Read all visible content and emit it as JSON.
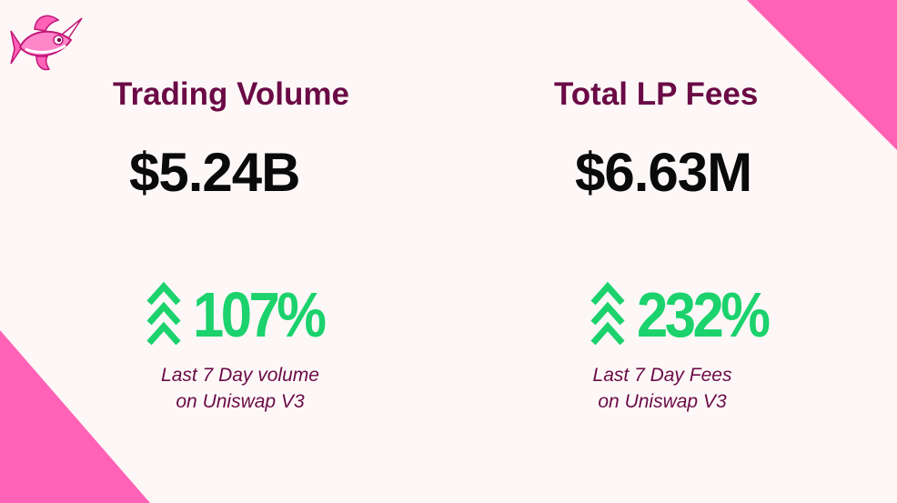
{
  "colors": {
    "background": "#fdf8f7",
    "accent_pink": "#ff62b6",
    "heading": "#6b0a46",
    "value": "#0a0a0a",
    "growth_green": "#1bd26d"
  },
  "logo": {
    "icon": "unicorn-fish-icon"
  },
  "stats": [
    {
      "heading": "Trading Volume",
      "value": "$5.24B",
      "growth": "107%",
      "growth_icon": "triple-chevron-up-icon",
      "caption_line1": "Last 7 Day volume",
      "caption_line2": "on Uniswap V3"
    },
    {
      "heading": "Total LP Fees",
      "value": "$6.63M",
      "growth": "232%",
      "growth_icon": "triple-chevron-up-icon",
      "caption_line1": "Last 7 Day Fees",
      "caption_line2": "on Uniswap V3"
    }
  ]
}
